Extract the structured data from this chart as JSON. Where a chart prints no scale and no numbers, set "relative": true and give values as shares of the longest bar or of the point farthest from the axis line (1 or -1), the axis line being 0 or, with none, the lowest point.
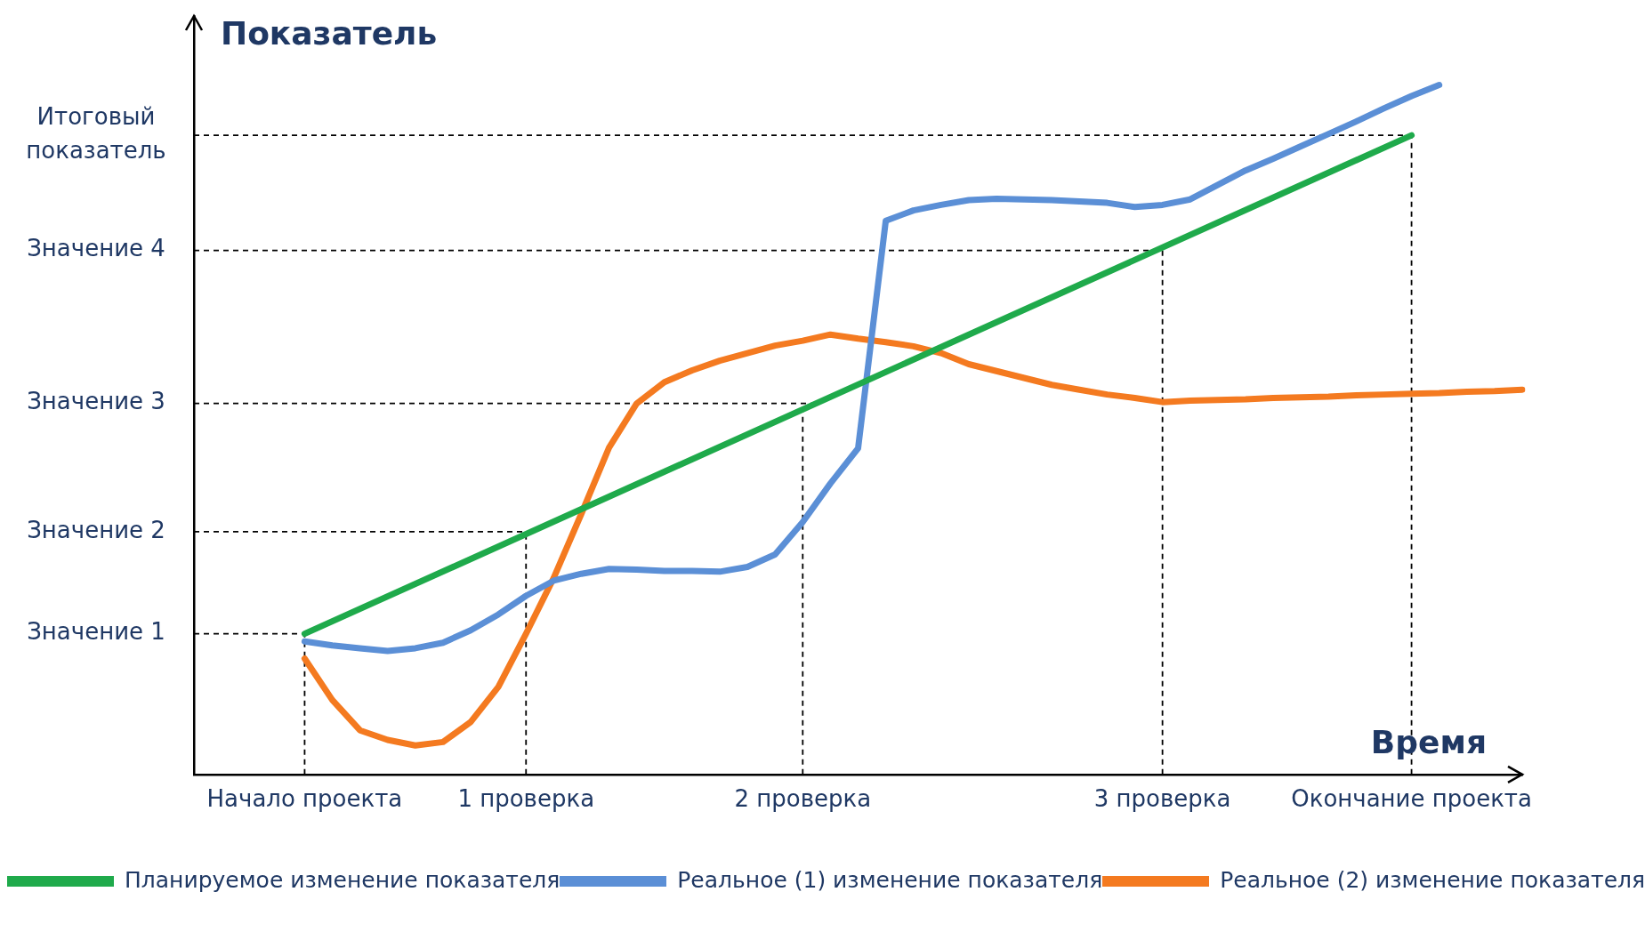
{
  "chart_data": {
    "type": "line",
    "relative": true,
    "xlabel": "Время",
    "ylabel": "Показатель",
    "categories": [
      null,
      null,
      null,
      null,
      "Начало проекта",
      null,
      null,
      null,
      null,
      null,
      null,
      null,
      "1 проверка",
      null,
      null,
      null,
      null,
      null,
      null,
      null,
      null,
      null,
      "2 проверка",
      null,
      null,
      null,
      null,
      null,
      null,
      null,
      null,
      null,
      null,
      null,
      null,
      "3 проверка",
      null,
      null,
      null,
      null,
      null,
      null,
      null,
      null,
      "Окончание проекта",
      null,
      null,
      null,
      null
    ],
    "ref_lines": [
      {
        "axis": "y",
        "value": 0.204,
        "label": "Значение 1",
        "color": "#000000",
        "line_style": "dashed"
      },
      {
        "axis": "y",
        "value": 0.352,
        "label": "Значение 2",
        "color": "#000000",
        "line_style": "dashed"
      },
      {
        "axis": "y",
        "value": 0.538,
        "label": "Значение 3",
        "color": "#000000",
        "line_style": "dashed"
      },
      {
        "axis": "y",
        "value": 0.76,
        "label": "Значение 4",
        "color": "#000000",
        "line_style": "dashed"
      },
      {
        "axis": "y",
        "value": 0.927,
        "label": "Итоговый показатель",
        "color": "#000000",
        "line_style": "dashed"
      },
      {
        "axis": "x",
        "value": "Начало проекта",
        "color": "#000000",
        "line_style": "dashed"
      },
      {
        "axis": "x",
        "value": "1 проверка",
        "color": "#000000",
        "line_style": "dashed"
      },
      {
        "axis": "x",
        "value": "2 проверка",
        "color": "#000000",
        "line_style": "dashed"
      },
      {
        "axis": "x",
        "value": "3 проверка",
        "color": "#000000",
        "line_style": "dashed"
      },
      {
        "axis": "x",
        "value": "Окончание проекта",
        "color": "#000000",
        "line_style": "dashed"
      }
    ],
    "grid": false,
    "legend": "bottom",
    "marker": "none",
    "series": [
      {
        "name": "Планируемое изменение показателя",
        "color": "#1faa4b",
        "values": [
          null,
          null,
          null,
          null,
          0.204,
          null,
          null,
          null,
          null,
          null,
          null,
          null,
          null,
          null,
          null,
          null,
          null,
          null,
          null,
          null,
          null,
          null,
          null,
          null,
          null,
          null,
          null,
          null,
          null,
          null,
          null,
          null,
          null,
          null,
          null,
          null,
          null,
          null,
          null,
          null,
          null,
          null,
          null,
          null,
          0.927,
          null,
          null,
          null,
          null
        ]
      },
      {
        "name": "Реальное (1) изменение показателя",
        "color": "#5b8fd6",
        "values": [
          null,
          null,
          null,
          null,
          0.193,
          0.187,
          0.183,
          0.179,
          0.183,
          0.191,
          0.209,
          0.232,
          0.259,
          0.281,
          0.291,
          0.298,
          0.297,
          0.295,
          0.295,
          0.294,
          0.301,
          0.319,
          0.366,
          0.422,
          0.473,
          0.803,
          0.818,
          0.826,
          0.833,
          0.835,
          0.834,
          0.833,
          0.831,
          0.829,
          0.823,
          0.826,
          0.834,
          0.855,
          0.876,
          0.893,
          0.911,
          0.929,
          0.947,
          0.966,
          0.984,
          1,
          null,
          null,
          null
        ]
      },
      {
        "name": "Реальное (2) изменение показателя",
        "color": "#f47a20",
        "values": [
          null,
          null,
          null,
          null,
          0.168,
          0.108,
          0.064,
          0.05,
          0.042,
          0.047,
          0.076,
          0.127,
          0.204,
          0.285,
          0.378,
          0.474,
          0.538,
          0.569,
          0.586,
          0.6,
          0.611,
          0.622,
          0.629,
          0.638,
          0.632,
          0.627,
          0.621,
          0.611,
          0.595,
          0.585,
          0.575,
          0.565,
          0.558,
          0.551,
          0.546,
          0.54,
          0.542,
          0.543,
          0.544,
          0.546,
          0.547,
          0.548,
          0.55,
          0.551,
          0.552,
          0.553,
          0.555,
          0.556,
          0.558
        ]
      }
    ]
  }
}
